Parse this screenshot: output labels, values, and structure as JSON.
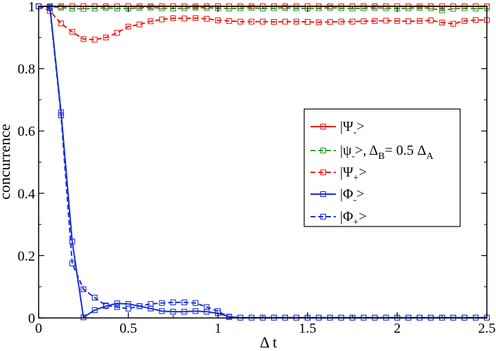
{
  "chart_data": {
    "type": "line",
    "xlabel": "Δ t",
    "ylabel": "concurrence",
    "xlim": [
      0,
      2.5
    ],
    "ylim": [
      0,
      1
    ],
    "xticks": [
      "0",
      "0.5",
      "1",
      "1.5",
      "2",
      "2.5"
    ],
    "yticks": [
      "0",
      "0.2",
      "0.4",
      "0.6",
      "0.8",
      "1"
    ],
    "grid": false,
    "legend_position": "right",
    "series": [
      {
        "name": "|Ψ->",
        "legend": {
          "main": "|Ψ",
          "sub": "-",
          "post": ">"
        },
        "color": "#e8201a",
        "dash": "solid",
        "marker": "square",
        "x": [
          0,
          0.0625,
          0.125,
          0.1875,
          0.25,
          0.3125,
          0.375,
          0.4375,
          0.5,
          0.5625,
          0.625,
          0.6875,
          0.75,
          0.8125,
          0.875,
          0.9375,
          1,
          1.0625,
          1.125,
          1.1875,
          1.25,
          1.3125,
          1.375,
          1.4375,
          1.5,
          1.5625,
          1.625,
          1.6875,
          1.75,
          1.8125,
          1.875,
          1.9375,
          2,
          2.0625,
          2.125,
          2.1875,
          2.25,
          2.3125,
          2.375,
          2.4375,
          2.5
        ],
        "y": [
          1,
          1,
          1,
          1,
          1,
          1,
          1,
          1,
          1,
          1,
          1,
          1,
          1,
          1,
          1,
          1,
          1,
          1,
          1,
          1,
          1,
          1,
          1,
          1,
          1,
          1,
          1,
          1,
          1,
          1,
          1,
          1,
          1,
          1,
          1,
          1,
          1,
          1,
          1,
          1,
          1
        ]
      },
      {
        "name": "|ψ->, ΔB= 0.5 ΔA",
        "legend": {
          "main": "|ψ",
          "sub": "-",
          "post": ">, Δ",
          "sub2": "B",
          "post2": "= 0.5 Δ",
          "sub3": "A"
        },
        "color": "#2e9a2e",
        "dash": "dashed",
        "marker": "square",
        "x": [
          0,
          0.0625,
          0.125,
          0.1875,
          0.25,
          0.3125,
          0.375,
          0.4375,
          0.5,
          0.5625,
          0.625,
          0.6875,
          0.75,
          0.8125,
          0.875,
          0.9375,
          1,
          1.0625,
          1.125,
          1.1875,
          1.25,
          1.3125,
          1.375,
          1.4375,
          1.5,
          1.5625,
          1.625,
          1.6875,
          1.75,
          1.8125,
          1.875,
          1.9375,
          2,
          2.0625,
          2.125,
          2.1875,
          2.25,
          2.3125,
          2.375,
          2.4375,
          2.5
        ],
        "y": [
          1,
          0.998,
          0.996,
          0.993,
          0.992,
          0.993,
          0.995,
          0.993,
          0.993,
          0.995,
          0.996,
          0.994,
          0.993,
          0.994,
          0.996,
          0.995,
          0.994,
          0.993,
          0.994,
          0.995,
          0.993,
          0.994,
          0.995,
          0.994,
          0.993,
          0.994,
          0.995,
          0.994,
          0.993,
          0.994,
          0.995,
          0.994,
          0.993,
          0.994,
          0.995,
          0.994,
          0.987,
          0.992,
          0.994,
          0.993,
          0.994
        ]
      },
      {
        "name": "|Ψ+>",
        "legend": {
          "main": "|Ψ",
          "sub": "+",
          "post": ">"
        },
        "color": "#e8201a",
        "dash": "dashed",
        "marker": "square",
        "x": [
          0,
          0.0625,
          0.125,
          0.1875,
          0.25,
          0.3125,
          0.375,
          0.4375,
          0.5,
          0.5625,
          0.625,
          0.6875,
          0.75,
          0.8125,
          0.875,
          0.9375,
          1,
          1.0625,
          1.125,
          1.1875,
          1.25,
          1.3125,
          1.375,
          1.4375,
          1.5,
          1.5625,
          1.625,
          1.6875,
          1.75,
          1.8125,
          1.875,
          1.9375,
          2,
          2.0625,
          2.125,
          2.1875,
          2.25,
          2.3125,
          2.375,
          2.4375,
          2.5
        ],
        "y": [
          1,
          0.985,
          0.945,
          0.918,
          0.895,
          0.893,
          0.9,
          0.915,
          0.935,
          0.942,
          0.952,
          0.958,
          0.962,
          0.961,
          0.962,
          0.96,
          0.955,
          0.953,
          0.951,
          0.951,
          0.951,
          0.95,
          0.951,
          0.951,
          0.95,
          0.949,
          0.95,
          0.951,
          0.951,
          0.952,
          0.953,
          0.954,
          0.953,
          0.952,
          0.953,
          0.955,
          0.948,
          0.944,
          0.953,
          0.956,
          0.956
        ]
      },
      {
        "name": "|Φ->",
        "legend": {
          "main": "|Φ",
          "sub": "-",
          "post": ">"
        },
        "color": "#1a2ed8",
        "dash": "solid",
        "marker": "square",
        "x": [
          0,
          0.0625,
          0.125,
          0.1875,
          0.25,
          0.3125,
          0.375,
          0.4375,
          0.5,
          0.5625,
          0.625,
          0.6875,
          0.75,
          0.8125,
          0.875,
          0.9375,
          1,
          1.0625,
          1.125,
          1.1875,
          1.25,
          1.3125,
          1.375,
          1.4375,
          1.5,
          1.5625,
          1.625,
          1.6875,
          1.75,
          1.8125,
          1.875,
          1.9375,
          2,
          2.0625,
          2.125,
          2.1875,
          2.25,
          2.3125,
          2.375,
          2.4375,
          2.5
        ],
        "y": [
          1,
          1,
          0.66,
          0.245,
          0.002,
          0.025,
          0.038,
          0.047,
          0.045,
          0.038,
          0.03,
          0.022,
          0.02,
          0.02,
          0.022,
          0.02,
          0.015,
          0.004,
          0.001,
          0.001,
          0.001,
          0.001,
          0.001,
          0.001,
          0.001,
          0.001,
          0.001,
          0.001,
          0.001,
          0.001,
          0.001,
          0.001,
          0.001,
          0.001,
          0.001,
          0.001,
          0.001,
          0.001,
          0.001,
          0.001,
          0.001
        ]
      },
      {
        "name": "|Φ+>",
        "legend": {
          "main": "|Φ",
          "sub": "+",
          "post": ">"
        },
        "color": "#1a2ed8",
        "dash": "dashed",
        "marker": "square",
        "x": [
          0,
          0.0625,
          0.125,
          0.1875,
          0.25,
          0.3125,
          0.375,
          0.4375,
          0.5,
          0.5625,
          0.625,
          0.6875,
          0.75,
          0.8125,
          0.875,
          0.9375,
          1,
          1.0625,
          1.125,
          1.1875,
          1.25,
          1.3125,
          1.375,
          1.4375,
          1.5,
          1.5625,
          1.625,
          1.6875,
          1.75,
          1.8125,
          1.875,
          1.9375,
          2,
          2.0625,
          2.125,
          2.1875,
          2.25,
          2.3125,
          2.375,
          2.4375,
          2.5
        ],
        "y": [
          1,
          0.995,
          0.65,
          0.175,
          0.092,
          0.065,
          0.04,
          0.035,
          0.03,
          0.038,
          0.045,
          0.048,
          0.05,
          0.05,
          0.048,
          0.035,
          0.022,
          0.003,
          0.001,
          0.001,
          0.001,
          0.001,
          0.001,
          0.001,
          0.001,
          0.001,
          0.001,
          0.001,
          0.001,
          0.001,
          0.001,
          0.001,
          0.001,
          0.001,
          0.001,
          0.001,
          0.001,
          0.001,
          0.001,
          0.001,
          0.001
        ]
      }
    ]
  }
}
